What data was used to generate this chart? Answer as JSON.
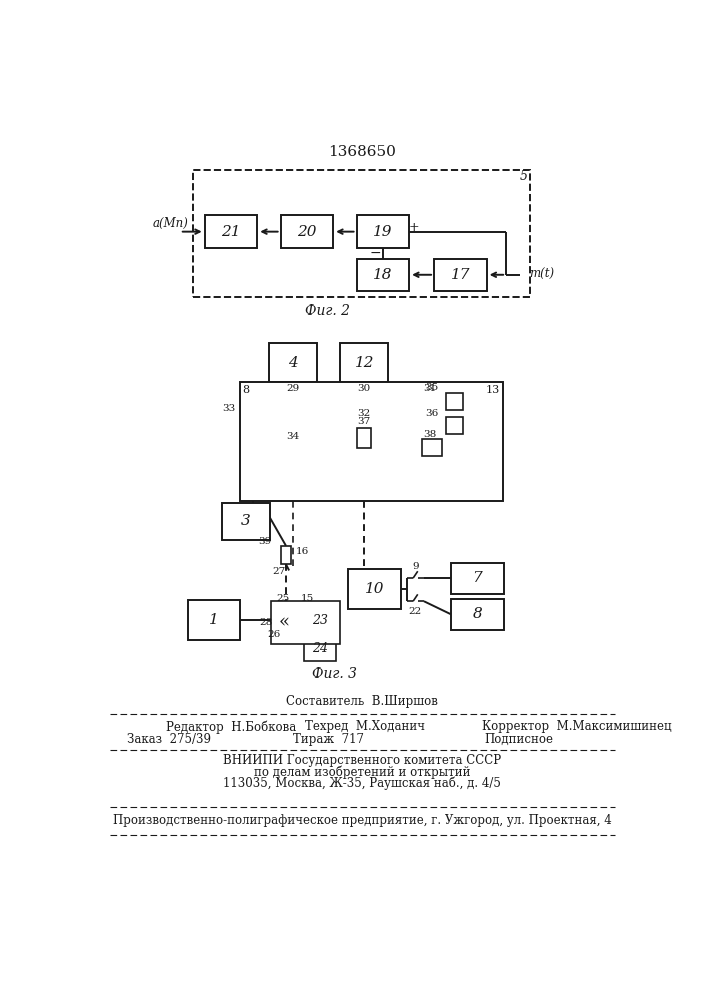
{
  "title": "1368650",
  "fig2_label": "Фиг. 2",
  "fig3_label": "Фиг. 3",
  "bg_color": "#ffffff",
  "line_color": "#1a1a1a"
}
